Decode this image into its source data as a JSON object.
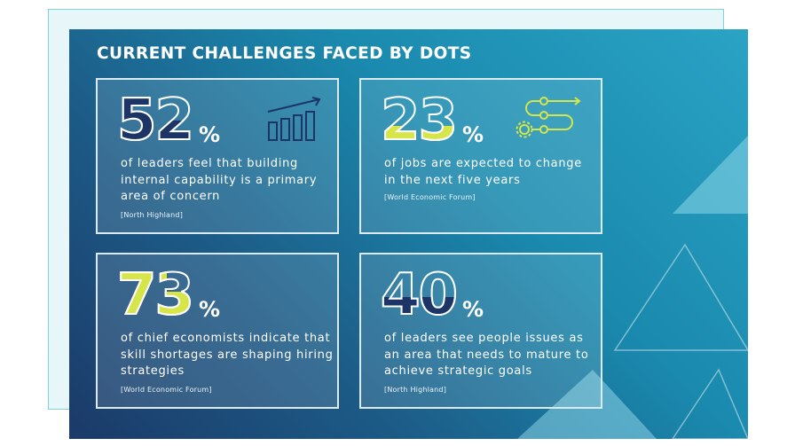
{
  "header": {
    "title": "CURRENT CHALLENGES FACED BY DOTS"
  },
  "stats": [
    {
      "number": "52",
      "unit": "%",
      "text": "of leaders feel that building internal capability is a primary area of concern",
      "source": "[North Highland]",
      "icon": "bar-chart-growth-icon"
    },
    {
      "number": "23",
      "unit": "%",
      "text": "of jobs are expected to change in the next five years",
      "source": "[World Economic Forum]",
      "icon": "gear-process-flow-icon"
    },
    {
      "number": "73",
      "unit": "%",
      "text": "of chief economists indicate that skill shortages are shaping hiring strategies",
      "source": "[World Economic Forum]",
      "icon": ""
    },
    {
      "number": "40",
      "unit": "%",
      "text": "of leaders see people issues as an area that needs to mature to achieve strategic goals",
      "source": "[North Highland]",
      "icon": ""
    }
  ],
  "colors": {
    "accent_yellow": "#d6e54a",
    "number_navy": "#1d3566",
    "outline_white": "#ffffff",
    "border_light": "#dcebf3",
    "back_card_border": "#7fd1dc"
  }
}
